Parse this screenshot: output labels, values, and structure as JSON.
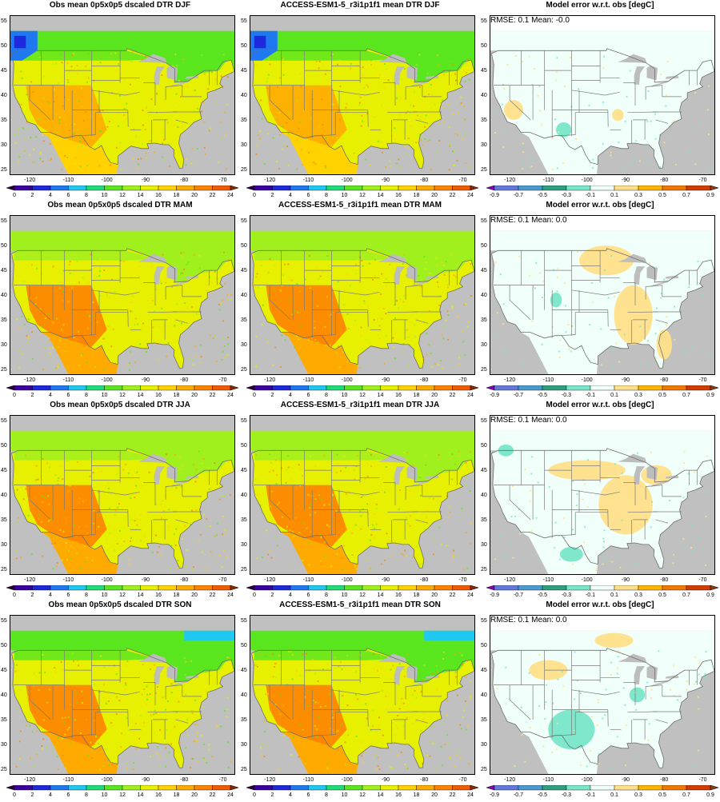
{
  "panels": [
    {
      "title": "Obs mean 0p5x0p5 dscaled DTR DJF",
      "kind": "mean",
      "season": "DJF",
      "stat": ""
    },
    {
      "title": "ACCESS-ESM1-5_r3i1p1f1 mean DTR DJF",
      "kind": "mean",
      "season": "DJF",
      "stat": ""
    },
    {
      "title": "Model error w.r.t. obs [degC]",
      "kind": "error",
      "season": "DJF",
      "stat": "RMSE: 0.1   Mean: -0.0"
    },
    {
      "title": "Obs mean 0p5x0p5 dscaled DTR MAM",
      "kind": "mean",
      "season": "MAM",
      "stat": ""
    },
    {
      "title": "ACCESS-ESM1-5_r3i1p1f1 mean DTR MAM",
      "kind": "mean",
      "season": "MAM",
      "stat": ""
    },
    {
      "title": "Model error w.r.t. obs [degC]",
      "kind": "error",
      "season": "MAM",
      "stat": "RMSE: 0.1   Mean: 0.0"
    },
    {
      "title": "Obs mean 0p5x0p5 dscaled DTR JJA",
      "kind": "mean",
      "season": "JJA",
      "stat": ""
    },
    {
      "title": "ACCESS-ESM1-5_r3i1p1f1 mean DTR JJA",
      "kind": "mean",
      "season": "JJA",
      "stat": ""
    },
    {
      "title": "Model error w.r.t. obs [degC]",
      "kind": "error",
      "season": "JJA",
      "stat": "RMSE: 0.1   Mean: 0.0"
    },
    {
      "title": "Obs mean 0p5x0p5 dscaled DTR SON",
      "kind": "mean",
      "season": "SON",
      "stat": ""
    },
    {
      "title": "ACCESS-ESM1-5_r3i1p1f1 mean DTR SON",
      "kind": "mean",
      "season": "SON",
      "stat": ""
    },
    {
      "title": "Model error w.r.t. obs [degC]",
      "kind": "error",
      "season": "SON",
      "stat": "RMSE: 0.1   Mean: 0.0"
    }
  ],
  "axes": {
    "lon_ticks": [
      "-120",
      "-110",
      "-100",
      "-90",
      "-80",
      "-70"
    ],
    "lat_ticks": [
      "55",
      "50",
      "45",
      "40",
      "35",
      "30",
      "25"
    ],
    "lon_values": [
      -120,
      -110,
      -100,
      -90,
      -80,
      -70
    ],
    "lat_values": [
      55,
      50,
      45,
      40,
      35,
      30,
      25
    ],
    "lon_range": [
      -125,
      -67
    ],
    "lat_range": [
      24,
      56
    ]
  },
  "colorbars": {
    "mean": {
      "labels": [
        "0",
        "2",
        "4",
        "6",
        "8",
        "10",
        "12",
        "14",
        "16",
        "18",
        "20",
        "22",
        "24"
      ],
      "colors": [
        "#2a0038",
        "#3c00a0",
        "#1e28dc",
        "#1e78f0",
        "#1ec8f0",
        "#1edc78",
        "#5ae61e",
        "#a0f01e",
        "#e6f000",
        "#ffd200",
        "#ffaa00",
        "#ff8200",
        "#f05a00",
        "#8c2800"
      ]
    },
    "error": {
      "labels": [
        "-0.9",
        "-0.7",
        "-0.5",
        "-0.3",
        "-0.1",
        "0.1",
        "0.3",
        "0.5",
        "0.7",
        "0.9"
      ],
      "colors": [
        "#8c00b4",
        "#6478dc",
        "#4a9ad2",
        "#2ea080",
        "#78e6c8",
        "#f0fffa",
        "#ffe08a",
        "#ffb400",
        "#f07800",
        "#d23c00",
        "#8c3c14"
      ]
    }
  },
  "land_colors": {
    "mean": {
      "DJF": "#e6f000",
      "MAM": "#e6f000",
      "JJA": "#e6f000",
      "SON": "#e6f000"
    },
    "north": {
      "DJF": "#5ae61e",
      "MAM": "#a0f01e",
      "JJA": "#a0f01e",
      "SON": "#5ae61e"
    },
    "southwest": {
      "DJF": "#ffd200",
      "MAM": "#ffaa00",
      "JJA": "#ffaa00",
      "SON": "#ffaa00"
    },
    "west_hot": {
      "DJF": "#ffaa00",
      "MAM": "#ff8200",
      "JJA": "#ff8200",
      "SON": "#ff8200"
    },
    "error_base": "#f0fffa",
    "ocean": "#c0c0c0"
  }
}
